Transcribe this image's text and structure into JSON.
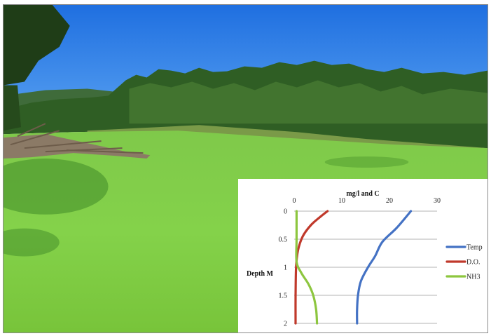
{
  "image": {
    "subject": "pond-with-duckweed-photo"
  },
  "chart_data": {
    "type": "line",
    "orientation": "depth-profile",
    "title": "",
    "xlabel": "mg/l and C",
    "ylabel": "Depth M",
    "xlim": [
      0,
      30
    ],
    "ylim": [
      0,
      2
    ],
    "y_inverted": true,
    "x_ticks": [
      "0",
      "10",
      "20",
      "30"
    ],
    "y_ticks": [
      "0",
      "0.5",
      "1",
      "1.5",
      "2"
    ],
    "grid": "horizontal",
    "legend_position": "right",
    "series": [
      {
        "name": "Temp",
        "color": "#4472c4",
        "points": [
          [
            24.5,
            0
          ],
          [
            21.5,
            0.3
          ],
          [
            18.5,
            0.55
          ],
          [
            17,
            0.8
          ],
          [
            15.5,
            1.0
          ],
          [
            14,
            1.25
          ],
          [
            13.4,
            1.5
          ],
          [
            13.2,
            1.75
          ],
          [
            13.2,
            2.0
          ]
        ]
      },
      {
        "name": "D.O.",
        "color": "#c0392b",
        "points": [
          [
            7,
            0
          ],
          [
            5.5,
            0.1
          ],
          [
            3.5,
            0.25
          ],
          [
            1.8,
            0.45
          ],
          [
            0.8,
            0.7
          ],
          [
            0.4,
            1.0
          ],
          [
            0.3,
            1.5
          ],
          [
            0.3,
            2.0
          ]
        ]
      },
      {
        "name": "NH3",
        "color": "#8dc63f",
        "points": [
          [
            0.5,
            0
          ],
          [
            0.5,
            0.5
          ],
          [
            0.5,
            0.9
          ],
          [
            1.5,
            1.1
          ],
          [
            3,
            1.3
          ],
          [
            4,
            1.5
          ],
          [
            4.6,
            1.75
          ],
          [
            4.8,
            2.0
          ]
        ]
      }
    ]
  }
}
